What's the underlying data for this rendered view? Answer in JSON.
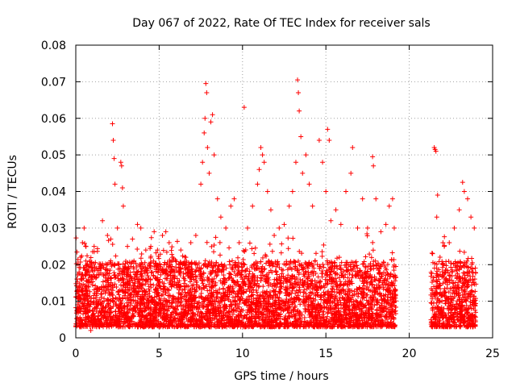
{
  "chart_data": {
    "type": "scatter",
    "title": "Day 067 of 2022, Rate Of TEC Index for receiver sals",
    "xlabel": "GPS time / hours",
    "ylabel": "ROTI / TECUs",
    "xlim": [
      0,
      25
    ],
    "ylim": [
      0,
      0.08
    ],
    "xticks": [
      0,
      5,
      10,
      15,
      20,
      25
    ],
    "yticks": [
      0,
      0.01,
      0.02,
      0.03,
      0.04,
      0.05,
      0.06,
      0.07,
      0.08
    ],
    "xtick_labels": [
      "0",
      "5",
      "10",
      "15",
      "20",
      "25"
    ],
    "ytick_labels": [
      "0",
      "0.01",
      "0.02",
      "0.03",
      "0.04",
      "0.05",
      "0.06",
      "0.07",
      "0.08"
    ],
    "grid": true,
    "marker": "+",
    "color": "#ff0000",
    "data_gap_hours": [
      19.2,
      21.3
    ],
    "series": [
      {
        "name": "ROTI",
        "points": [
          [
            0.1,
            0.012
          ],
          [
            0.2,
            0.018
          ],
          [
            0.3,
            0.022
          ],
          [
            0.4,
            0.026
          ],
          [
            0.5,
            0.03
          ],
          [
            0.6,
            0.021
          ],
          [
            0.8,
            0.017
          ],
          [
            0.9,
            0.002
          ],
          [
            1.1,
            0.025
          ],
          [
            1.4,
            0.019
          ],
          [
            1.6,
            0.032
          ],
          [
            1.9,
            0.028
          ],
          [
            2.1,
            0.027
          ],
          [
            2.2,
            0.0585
          ],
          [
            2.25,
            0.054
          ],
          [
            2.3,
            0.049
          ],
          [
            2.35,
            0.042
          ],
          [
            2.5,
            0.03
          ],
          [
            2.7,
            0.048
          ],
          [
            2.75,
            0.047
          ],
          [
            2.8,
            0.041
          ],
          [
            2.85,
            0.036
          ],
          [
            3.1,
            0.025
          ],
          [
            3.4,
            0.027
          ],
          [
            3.7,
            0.031
          ],
          [
            3.9,
            0.03
          ],
          [
            4.2,
            0.024
          ],
          [
            4.5,
            0.025
          ],
          [
            4.7,
            0.029
          ],
          [
            4.9,
            0.024
          ],
          [
            5.2,
            0.028
          ],
          [
            5.4,
            0.029
          ],
          [
            5.6,
            0.026
          ],
          [
            5.8,
            0.022
          ],
          [
            6.3,
            0.024
          ],
          [
            6.6,
            0.022
          ],
          [
            6.9,
            0.026
          ],
          [
            7.2,
            0.028
          ],
          [
            7.5,
            0.042
          ],
          [
            7.6,
            0.048
          ],
          [
            7.7,
            0.056
          ],
          [
            7.75,
            0.06
          ],
          [
            7.8,
            0.0695
          ],
          [
            7.85,
            0.067
          ],
          [
            7.9,
            0.052
          ],
          [
            8.0,
            0.045
          ],
          [
            8.1,
            0.059
          ],
          [
            8.2,
            0.061
          ],
          [
            8.3,
            0.05
          ],
          [
            8.5,
            0.038
          ],
          [
            8.7,
            0.033
          ],
          [
            9.0,
            0.03
          ],
          [
            9.3,
            0.036
          ],
          [
            9.5,
            0.038
          ],
          [
            9.8,
            0.026
          ],
          [
            10.1,
            0.063
          ],
          [
            10.3,
            0.03
          ],
          [
            10.6,
            0.036
          ],
          [
            10.9,
            0.042
          ],
          [
            11.0,
            0.046
          ],
          [
            11.1,
            0.052
          ],
          [
            11.2,
            0.05
          ],
          [
            11.3,
            0.048
          ],
          [
            11.5,
            0.04
          ],
          [
            11.7,
            0.035
          ],
          [
            11.9,
            0.028
          ],
          [
            12.2,
            0.03
          ],
          [
            12.5,
            0.031
          ],
          [
            12.8,
            0.036
          ],
          [
            13.0,
            0.04
          ],
          [
            13.2,
            0.048
          ],
          [
            13.3,
            0.0705
          ],
          [
            13.35,
            0.067
          ],
          [
            13.4,
            0.062
          ],
          [
            13.5,
            0.055
          ],
          [
            13.6,
            0.045
          ],
          [
            13.8,
            0.05
          ],
          [
            14.0,
            0.042
          ],
          [
            14.2,
            0.036
          ],
          [
            14.6,
            0.054
          ],
          [
            14.8,
            0.048
          ],
          [
            15.0,
            0.04
          ],
          [
            15.1,
            0.057
          ],
          [
            15.2,
            0.054
          ],
          [
            15.3,
            0.032
          ],
          [
            15.6,
            0.035
          ],
          [
            15.9,
            0.031
          ],
          [
            16.2,
            0.04
          ],
          [
            16.5,
            0.045
          ],
          [
            16.6,
            0.052
          ],
          [
            16.9,
            0.03
          ],
          [
            17.2,
            0.038
          ],
          [
            17.5,
            0.03
          ],
          [
            17.8,
            0.0495
          ],
          [
            17.85,
            0.047
          ],
          [
            18.0,
            0.038
          ],
          [
            18.3,
            0.029
          ],
          [
            18.6,
            0.031
          ],
          [
            18.8,
            0.036
          ],
          [
            19.0,
            0.038
          ],
          [
            19.1,
            0.03
          ],
          [
            21.4,
            0.023
          ],
          [
            21.5,
            0.052
          ],
          [
            21.55,
            0.0515
          ],
          [
            21.6,
            0.051
          ],
          [
            21.65,
            0.033
          ],
          [
            21.7,
            0.039
          ],
          [
            22.1,
            0.025
          ],
          [
            22.4,
            0.026
          ],
          [
            22.7,
            0.03
          ],
          [
            23.0,
            0.035
          ],
          [
            23.2,
            0.0425
          ],
          [
            23.3,
            0.04
          ],
          [
            23.5,
            0.038
          ],
          [
            23.7,
            0.033
          ],
          [
            23.9,
            0.03
          ]
        ]
      }
    ]
  }
}
